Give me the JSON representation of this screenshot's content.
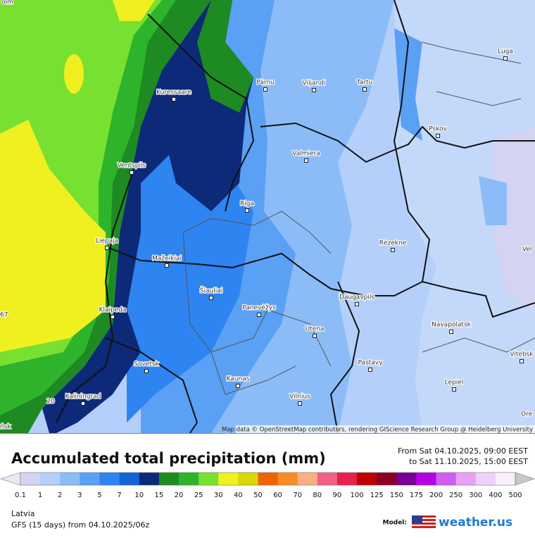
{
  "map": {
    "cities": [
      "Kuressaare",
      "Pärnu",
      "Viljandi",
      "Tartu",
      "Luga",
      "Pskov",
      "Valmiera",
      "Ventspils",
      "Riga",
      "Rēzekne",
      "Liepaja",
      "Mažeikiai",
      "Šiauliai",
      "Panevėžys",
      "Daugavpils",
      "Klaipeda",
      "Utena",
      "Navapolatsk",
      "Vitebsk",
      "Sovetsk",
      "Pastavy",
      "Kaunas",
      "Lepiel",
      "Kaliningrad",
      "Vilnius"
    ],
    "fragments": [
      "olm",
      "67",
      "ńsk",
      "Vel",
      "Ore",
      "20"
    ],
    "attribution": "Map data © OpenStreetMap contributors, rendering GIScience Research Group @ Heidelberg University"
  },
  "title": "Accumulated total precipitation (mm)",
  "period": {
    "from": "From Sat 04.10.2025, 09:00 EEST",
    "to": "to Sat 11.10.2025, 15:00 EEST"
  },
  "legend": {
    "ticks": [
      0.1,
      1,
      2,
      3,
      5,
      7,
      10,
      15,
      20,
      25,
      30,
      40,
      50,
      60,
      70,
      80,
      90,
      100,
      125,
      150,
      175,
      200,
      250,
      300,
      400,
      500
    ],
    "colors": [
      "#e8e8f6",
      "#d4d4f2",
      "#b4d0fa",
      "#8cbcf8",
      "#5aa0f4",
      "#2e84f0",
      "#1464d8",
      "#0c2a78",
      "#1e8a22",
      "#2eb42a",
      "#78e030",
      "#f0f020",
      "#d8d800",
      "#f06400",
      "#f88c28",
      "#f8b080",
      "#f06088",
      "#e8204c",
      "#c00000",
      "#8c0020",
      "#780094",
      "#b400e6",
      "#d05cf0",
      "#e8a0f8",
      "#f0d0fc",
      "#f8f0ff",
      "#c8c8c8"
    ]
  },
  "region": "Latvia",
  "model_run": "GFS (15 days) from  04.10.2025/06z",
  "model_label": "Model:",
  "brand": "weather.us"
}
